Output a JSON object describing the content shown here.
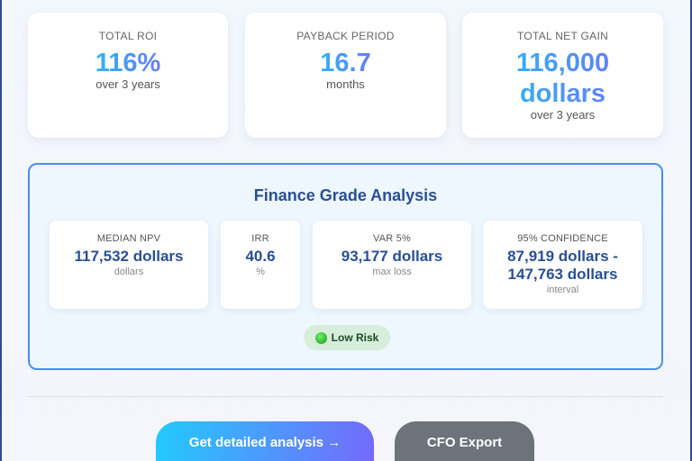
{
  "summary_cards": [
    {
      "label": "TOTAL ROI",
      "value": "116%",
      "sub": "over 3 years"
    },
    {
      "label": "PAYBACK PERIOD",
      "value": "16.7",
      "sub": "months"
    },
    {
      "label": "TOTAL NET GAIN",
      "value": "116,000 dollars",
      "sub": "over 3 years"
    }
  ],
  "analysis": {
    "title": "Finance Grade Analysis",
    "metrics": [
      {
        "label": "MEDIAN NPV",
        "value": "117,532 dollars",
        "sub": "dollars"
      },
      {
        "label": "IRR",
        "value": "40.6",
        "sub": "%"
      },
      {
        "label": "VAR 5%",
        "value": "93,177 dollars",
        "sub": "max loss"
      },
      {
        "label": "95% CONFIDENCE",
        "value": "87,919 dollars - 147,763 dollars",
        "sub": "interval"
      }
    ],
    "risk_badge": {
      "label": "Low Risk",
      "icon": "green-circle-icon",
      "color": "#1faa1f"
    }
  },
  "actions": {
    "primary": "Get detailed analysis →",
    "secondary": "CFO Export"
  },
  "colors": {
    "accent": "#2a4f96",
    "border": "#4a8fe6",
    "gradient_start": "#22cbfd",
    "gradient_end": "#7569fb"
  }
}
